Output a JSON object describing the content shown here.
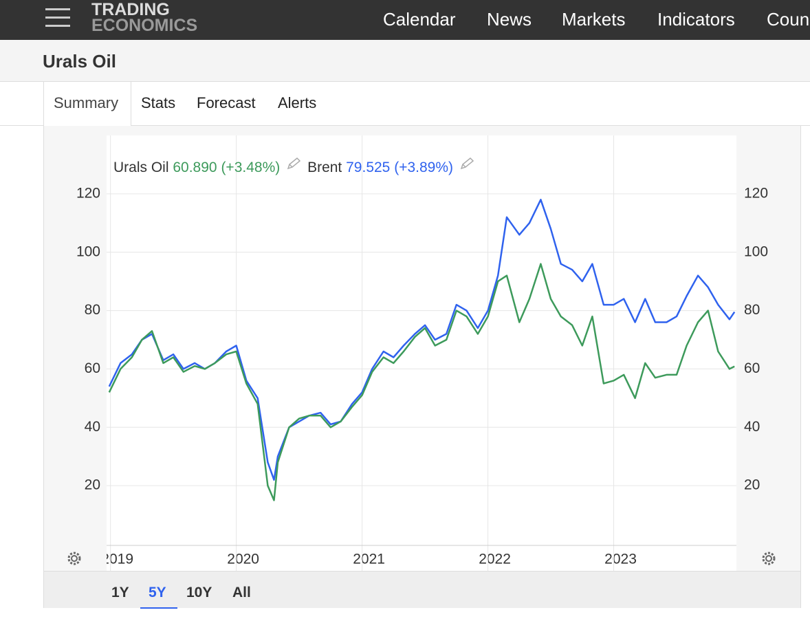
{
  "nav": {
    "logo": [
      "TRADING",
      "ECONOMICS"
    ],
    "items": [
      "Calendar",
      "News",
      "Markets",
      "Indicators",
      "Coun"
    ]
  },
  "header": {
    "title": "Urals Oil"
  },
  "tabs": [
    "Summary",
    "Stats",
    "Forecast",
    "Alerts"
  ],
  "chart_data": {
    "type": "line",
    "x": [
      2018.99,
      2019.08,
      2019.17,
      2019.25,
      2019.33,
      2019.42,
      2019.5,
      2019.58,
      2019.67,
      2019.75,
      2019.83,
      2019.92,
      2020.0,
      2020.08,
      2020.17,
      2020.25,
      2020.3,
      2020.33,
      2020.42,
      2020.5,
      2020.58,
      2020.67,
      2020.75,
      2020.83,
      2020.92,
      2021.0,
      2021.08,
      2021.17,
      2021.25,
      2021.33,
      2021.42,
      2021.5,
      2021.58,
      2021.67,
      2021.75,
      2021.83,
      2021.92,
      2022.0,
      2022.08,
      2022.15,
      2022.25,
      2022.33,
      2022.42,
      2022.5,
      2022.58,
      2022.67,
      2022.75,
      2022.83,
      2022.92,
      2023.0,
      2023.08,
      2023.17,
      2023.25,
      2023.33,
      2023.42,
      2023.5,
      2023.58,
      2023.67,
      2023.75,
      2023.83,
      2023.92,
      2023.96
    ],
    "xlim": [
      2018.98,
      2023.97
    ],
    "xticks": [
      2019,
      2020,
      2021,
      2022,
      2023
    ],
    "ylim": [
      0,
      140
    ],
    "yticks": [
      20,
      40,
      60,
      80,
      100,
      120
    ],
    "y2lim": [
      0,
      140
    ],
    "y2ticks": [
      20,
      40,
      60,
      80,
      100,
      120
    ],
    "grid": true,
    "series": [
      {
        "name": "Urals Oil",
        "color": "#3d9a5b",
        "price_label": "60.890",
        "change_label": "(+3.48%)",
        "values": [
          52,
          60,
          64,
          70,
          73,
          62,
          64,
          59,
          61,
          60,
          62,
          65,
          66,
          55,
          48,
          20,
          15,
          28,
          40,
          43,
          44,
          44,
          40,
          42,
          47,
          51,
          59,
          64,
          62,
          66,
          71,
          74,
          68,
          70,
          80,
          78,
          72,
          78,
          90,
          92,
          76,
          84,
          96,
          84,
          78,
          75,
          68,
          78,
          55,
          56,
          58,
          50,
          62,
          57,
          58,
          58,
          68,
          76,
          80,
          66,
          60,
          60.89
        ]
      },
      {
        "name": "Brent",
        "color": "#2f62ee",
        "price_label": "79.525",
        "change_label": "(+3.89%)",
        "values": [
          54,
          62,
          65,
          70,
          72,
          63,
          65,
          60,
          62,
          60,
          62,
          66,
          68,
          56,
          50,
          28,
          22,
          30,
          40,
          42,
          44,
          45,
          41,
          42,
          48,
          52,
          60,
          66,
          64,
          68,
          72,
          75,
          70,
          72,
          82,
          80,
          74,
          80,
          92,
          112,
          106,
          110,
          118,
          108,
          96,
          94,
          90,
          96,
          82,
          82,
          84,
          76,
          84,
          76,
          76,
          78,
          85,
          92,
          88,
          82,
          77,
          79.525
        ]
      }
    ]
  },
  "ranges": [
    "1Y",
    "5Y",
    "10Y",
    "All"
  ]
}
